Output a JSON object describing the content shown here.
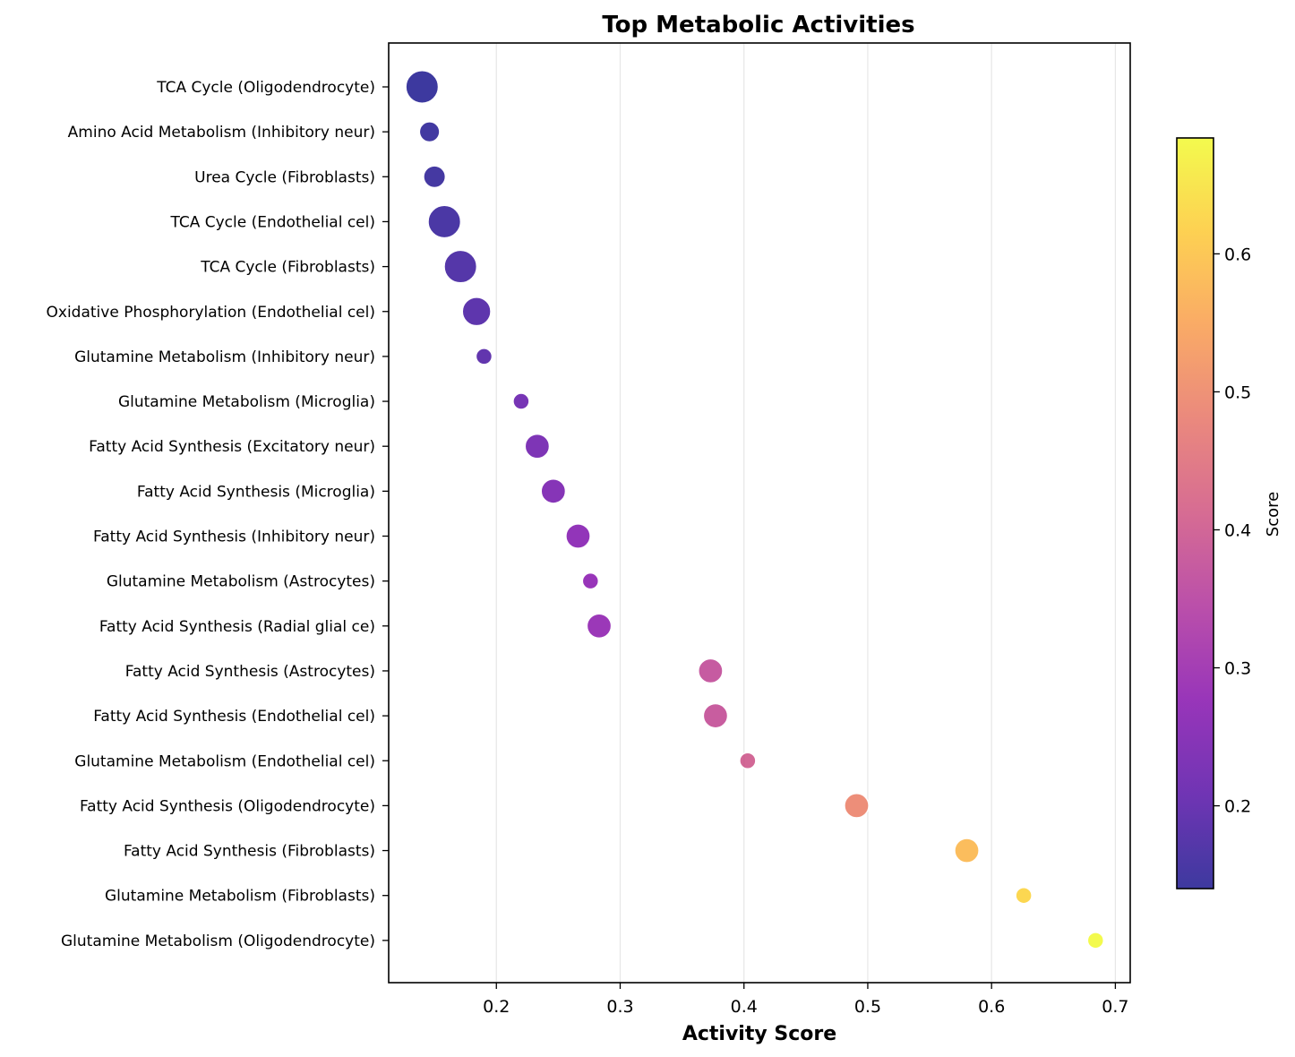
{
  "chart_data": {
    "type": "scatter",
    "title": "Top Metabolic Activities",
    "xlabel": "Activity Score",
    "ylabel": "",
    "xlim": [
      0.113,
      0.712
    ],
    "xticks": [
      0.2,
      0.3,
      0.4,
      0.5,
      0.6,
      0.7
    ],
    "xtick_labels": [
      "0.2",
      "0.3",
      "0.4",
      "0.5",
      "0.6",
      "0.7"
    ],
    "grid": "vertical",
    "colormap": "plasma",
    "colorbar": {
      "label": "Score",
      "range": [
        0.14,
        0.684
      ],
      "ticks": [
        0.2,
        0.3,
        0.4,
        0.5,
        0.6
      ],
      "tick_labels": [
        "0.2",
        "0.3",
        "0.4",
        "0.5",
        "0.6"
      ]
    },
    "points": [
      {
        "label": "TCA Cycle (Oligodendrocyte)",
        "x": 0.14,
        "size": 3
      },
      {
        "label": "Amino Acid Metabolism (Inhibitory neur)",
        "x": 0.146,
        "size": 1.5
      },
      {
        "label": "Urea Cycle (Fibroblasts)",
        "x": 0.15,
        "size": 1.7
      },
      {
        "label": "TCA Cycle (Endothelial cel)",
        "x": 0.158,
        "size": 3
      },
      {
        "label": "TCA Cycle (Fibroblasts)",
        "x": 0.171,
        "size": 3
      },
      {
        "label": "Oxidative Phosphorylation (Endothelial cel)",
        "x": 0.184,
        "size": 2.5
      },
      {
        "label": "Glutamine Metabolism (Inhibitory neur)",
        "x": 0.19,
        "size": 1
      },
      {
        "label": "Glutamine Metabolism (Microglia)",
        "x": 0.22,
        "size": 1
      },
      {
        "label": "Fatty Acid Synthesis (Excitatory neur)",
        "x": 0.233,
        "size": 2
      },
      {
        "label": "Fatty Acid Synthesis (Microglia)",
        "x": 0.246,
        "size": 2
      },
      {
        "label": "Fatty Acid Synthesis (Inhibitory neur)",
        "x": 0.266,
        "size": 2
      },
      {
        "label": "Glutamine Metabolism (Astrocytes)",
        "x": 0.276,
        "size": 1
      },
      {
        "label": "Fatty Acid Synthesis (Radial glial ce)",
        "x": 0.283,
        "size": 2
      },
      {
        "label": "Fatty Acid Synthesis (Astrocytes)",
        "x": 0.373,
        "size": 2
      },
      {
        "label": "Fatty Acid Synthesis (Endothelial cel)",
        "x": 0.377,
        "size": 2
      },
      {
        "label": "Glutamine Metabolism (Endothelial cel)",
        "x": 0.403,
        "size": 1
      },
      {
        "label": "Fatty Acid Synthesis (Oligodendrocyte)",
        "x": 0.491,
        "size": 2
      },
      {
        "label": "Fatty Acid Synthesis (Fibroblasts)",
        "x": 0.58,
        "size": 2
      },
      {
        "label": "Glutamine Metabolism (Fibroblasts)",
        "x": 0.626,
        "size": 1
      },
      {
        "label": "Glutamine Metabolism (Oligodendrocyte)",
        "x": 0.684,
        "size": 1
      }
    ]
  }
}
